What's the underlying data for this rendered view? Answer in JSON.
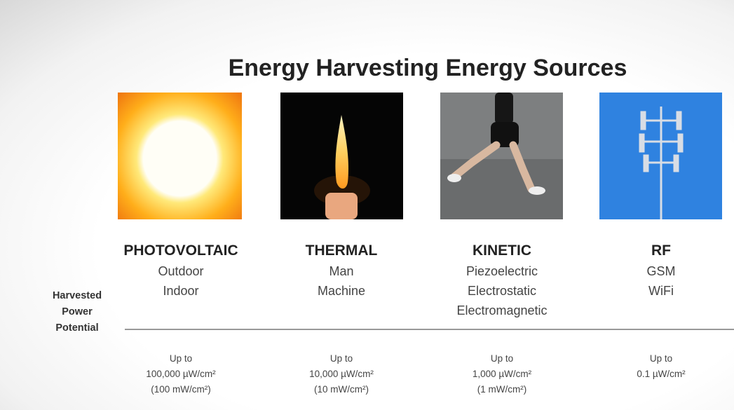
{
  "title": "Energy Harvesting Energy Sources",
  "side_label": [
    "Harvested",
    "Power",
    "Potential"
  ],
  "sources": [
    {
      "name": "PHOTOVOLTAIC",
      "items": [
        "Outdoor",
        "Indoor"
      ],
      "power": [
        "Up to",
        "100,000 µW/cm²",
        "(100 mW/cm²)"
      ]
    },
    {
      "name": "THERMAL",
      "items": [
        "Man",
        "Machine"
      ],
      "power": [
        "Up to",
        "10,000 µW/cm²",
        "(10 mW/cm²)"
      ]
    },
    {
      "name": "KINETIC",
      "items": [
        "Piezoelectric",
        "Electrostatic",
        "Electromagnetic"
      ],
      "power": [
        "Up to",
        "1,000 µW/cm²",
        "(1 mW/cm²)"
      ]
    },
    {
      "name": "RF",
      "items": [
        "GSM",
        "WiFi"
      ],
      "power": [
        "Up to",
        "0.1 µW/cm²"
      ]
    }
  ]
}
